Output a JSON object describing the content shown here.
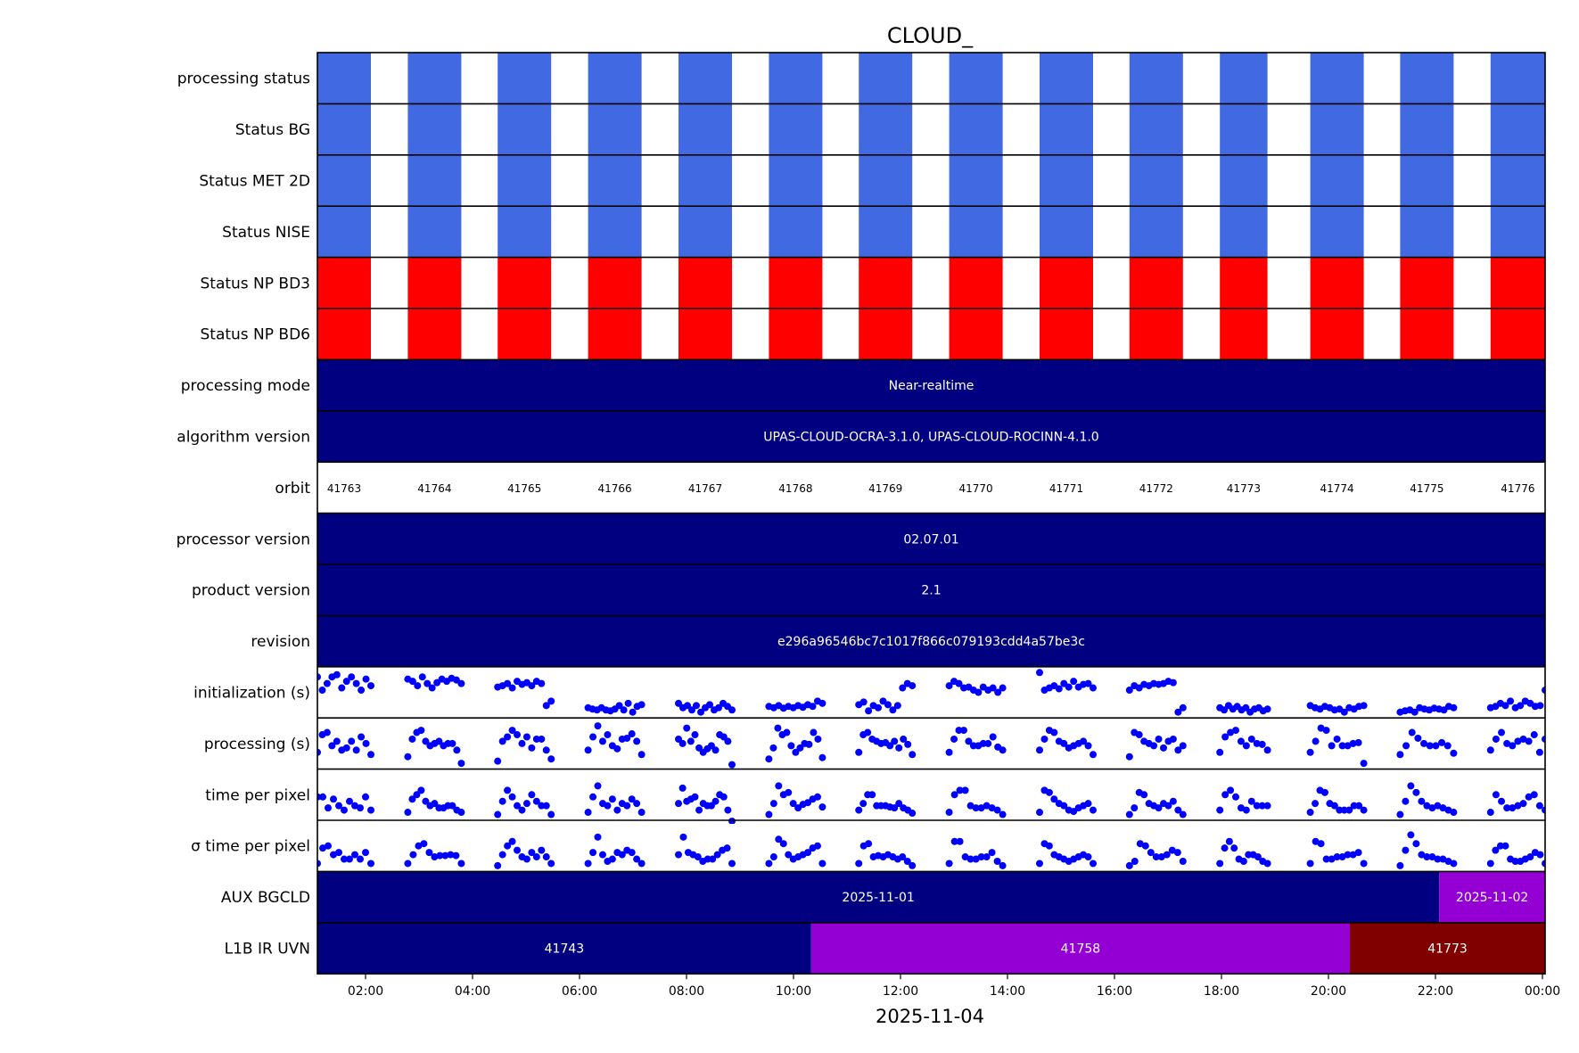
{
  "chart_data": {
    "type": "timeline",
    "title": "CLOUD_",
    "xlabel": "2025-11-04",
    "x_range_hours": [
      1.1,
      24.05
    ],
    "x_ticks": [
      {
        "hour": 2,
        "label": "02:00"
      },
      {
        "hour": 4,
        "label": "04:00"
      },
      {
        "hour": 6,
        "label": "06:00"
      },
      {
        "hour": 8,
        "label": "08:00"
      },
      {
        "hour": 10,
        "label": "10:00"
      },
      {
        "hour": 12,
        "label": "12:00"
      },
      {
        "hour": 14,
        "label": "14:00"
      },
      {
        "hour": 16,
        "label": "16:00"
      },
      {
        "hour": 18,
        "label": "18:00"
      },
      {
        "hour": 20,
        "label": "20:00"
      },
      {
        "hour": 22,
        "label": "22:00"
      },
      {
        "hour": 24,
        "label": "00:00"
      }
    ],
    "colors": {
      "status_ok": "#4169e1",
      "status_fail": "#ff0000",
      "navy": "#000080",
      "violet": "#9400d3",
      "maroon": "#800000",
      "dot": "#0000ff",
      "frame": "#000000"
    },
    "rows": [
      {
        "label": "processing status",
        "kind": "status",
        "color": "#4169e1"
      },
      {
        "label": "Status BG",
        "kind": "status",
        "color": "#4169e1"
      },
      {
        "label": "Status MET 2D",
        "kind": "status",
        "color": "#4169e1"
      },
      {
        "label": "Status NISE",
        "kind": "status",
        "color": "#4169e1"
      },
      {
        "label": "Status NP BD3",
        "kind": "status",
        "color": "#ff0000"
      },
      {
        "label": "Status NP BD6",
        "kind": "status",
        "color": "#ff0000"
      },
      {
        "label": "processing mode",
        "kind": "span",
        "segments": [
          {
            "start": 1.1,
            "end": 24.05,
            "text": "Near-realtime",
            "color": "#000080"
          }
        ]
      },
      {
        "label": "algorithm version",
        "kind": "span",
        "segments": [
          {
            "start": 1.1,
            "end": 24.05,
            "text": "UPAS-CLOUD-OCRA-3.1.0, UPAS-CLOUD-ROCINN-4.1.0",
            "color": "#000080"
          }
        ]
      },
      {
        "label": "orbit",
        "kind": "orbit"
      },
      {
        "label": "processor version",
        "kind": "span",
        "segments": [
          {
            "start": 1.1,
            "end": 24.05,
            "text": "02.07.01",
            "color": "#000080"
          }
        ]
      },
      {
        "label": "product version",
        "kind": "span",
        "segments": [
          {
            "start": 1.1,
            "end": 24.05,
            "text": "2.1",
            "color": "#000080"
          }
        ]
      },
      {
        "label": "revision",
        "kind": "span",
        "segments": [
          {
            "start": 1.1,
            "end": 24.05,
            "text": "e296a96546bc7c1017f866c079193cdd4a57be3c",
            "color": "#000080"
          }
        ]
      },
      {
        "label": "initialization (s)",
        "kind": "scatter",
        "metric": "init"
      },
      {
        "label": "processing (s)",
        "kind": "scatter",
        "metric": "proc"
      },
      {
        "label": "time per pixel",
        "kind": "scatter",
        "metric": "tpp"
      },
      {
        "label": "σ time per pixel",
        "kind": "scatter",
        "metric": "sigma"
      },
      {
        "label": "AUX BGCLD",
        "kind": "span",
        "segments": [
          {
            "start": 1.1,
            "end": 22.07,
            "text": "2025-11-01",
            "color": "#000080"
          },
          {
            "start": 22.07,
            "end": 24.05,
            "text": "2025-11-02",
            "color": "#9400d3"
          }
        ]
      },
      {
        "label": "L1B IR UVN",
        "kind": "span",
        "segments": [
          {
            "start": 1.1,
            "end": 10.33,
            "text": "41743",
            "color": "#000080"
          },
          {
            "start": 10.33,
            "end": 20.4,
            "text": "41758",
            "color": "#9400d3"
          },
          {
            "start": 20.4,
            "end": 24.05,
            "text": "41773",
            "color": "#800000"
          }
        ]
      }
    ],
    "orbits": [
      {
        "orbit": "41763",
        "start": 1.1,
        "end": 2.1
      },
      {
        "orbit": "41764",
        "start": 2.79,
        "end": 3.79
      },
      {
        "orbit": "41765",
        "start": 4.47,
        "end": 5.47
      },
      {
        "orbit": "41766",
        "start": 6.16,
        "end": 7.16
      },
      {
        "orbit": "41767",
        "start": 7.85,
        "end": 8.85
      },
      {
        "orbit": "41768",
        "start": 9.54,
        "end": 10.54
      },
      {
        "orbit": "41769",
        "start": 11.22,
        "end": 12.22
      },
      {
        "orbit": "41770",
        "start": 12.91,
        "end": 13.91
      },
      {
        "orbit": "41771",
        "start": 14.6,
        "end": 15.6
      },
      {
        "orbit": "41772",
        "start": 16.28,
        "end": 17.28
      },
      {
        "orbit": "41773",
        "start": 17.97,
        "end": 18.86
      },
      {
        "orbit": "41774",
        "start": 19.66,
        "end": 20.66
      },
      {
        "orbit": "41775",
        "start": 21.34,
        "end": 22.34
      },
      {
        "orbit": "41776",
        "start": 23.03,
        "end": 24.05
      }
    ],
    "metrics": {
      "init": [
        [
          0.85,
          0.55,
          0.7,
          0.85,
          0.9,
          0.6,
          0.75,
          0.85,
          0.7,
          0.55,
          0.8,
          0.65
        ],
        [
          0.8,
          0.75,
          0.65,
          0.85,
          0.7,
          0.6,
          0.72,
          0.8,
          0.75,
          0.82,
          0.78,
          0.7
        ],
        [
          0.62,
          0.65,
          0.7,
          0.6,
          0.75,
          0.68,
          0.72,
          0.65,
          0.75,
          0.7,
          0.2,
          0.3
        ],
        [
          0.15,
          0.12,
          0.1,
          0.15,
          0.1,
          0.08,
          0.12,
          0.2,
          0.1,
          0.25,
          0.05,
          0.18,
          0.22
        ],
        [
          0.25,
          0.15,
          0.2,
          0.1,
          0.2,
          0.05,
          0.15,
          0.22,
          0.1,
          0.15,
          0.25,
          0.18,
          0.1
        ],
        [
          0.18,
          0.15,
          0.2,
          0.14,
          0.18,
          0.15,
          0.2,
          0.16,
          0.22,
          0.18,
          0.3,
          0.25
        ],
        [
          0.22,
          0.28,
          0.08,
          0.2,
          0.15,
          0.3,
          0.22,
          0.1,
          0.2,
          0.6,
          0.7,
          0.65
        ],
        [
          0.65,
          0.75,
          0.7,
          0.6,
          0.62,
          0.55,
          0.5,
          0.62,
          0.55,
          0.6,
          0.5,
          0.6
        ],
        [
          0.95,
          0.55,
          0.6,
          0.65,
          0.58,
          0.7,
          0.62,
          0.75,
          0.62,
          0.68,
          0.7,
          0.6
        ],
        [
          0.55,
          0.65,
          0.6,
          0.68,
          0.65,
          0.7,
          0.68,
          0.7,
          0.75,
          0.72,
          0.05,
          0.15
        ],
        [
          0.15,
          0.1,
          0.2,
          0.12,
          0.18,
          0.1,
          0.15,
          0.05,
          0.12,
          0.15,
          0.08,
          0.12
        ],
        [
          0.2,
          0.15,
          0.12,
          0.18,
          0.15,
          0.1,
          0.12,
          0.05,
          0.15,
          0.12,
          0.18,
          0.2
        ],
        [
          0.05,
          0.08,
          0.1,
          0.05,
          0.15,
          0.12,
          0.1,
          0.14,
          0.12,
          0.1,
          0.18,
          0.15
        ],
        [
          0.15,
          0.18,
          0.25,
          0.2,
          0.3,
          0.15,
          0.2,
          0.3,
          0.25,
          0.18,
          0.2,
          0.55
        ]
      ],
      "proc": [
        [
          0.3,
          0.7,
          0.75,
          0.45,
          0.55,
          0.35,
          0.4,
          0.55,
          0.35,
          0.65,
          0.5,
          0.25
        ],
        [
          0.2,
          0.6,
          0.75,
          0.8,
          0.55,
          0.45,
          0.5,
          0.55,
          0.45,
          0.5,
          0.5,
          0.35,
          0.05
        ],
        [
          0.1,
          0.55,
          0.65,
          0.8,
          0.7,
          0.5,
          0.65,
          0.4,
          0.6,
          0.6,
          0.35,
          0.15
        ],
        [
          0.35,
          0.65,
          0.9,
          0.55,
          0.7,
          0.45,
          0.38,
          0.6,
          0.62,
          0.72,
          0.55,
          0.25
        ],
        [
          0.6,
          0.5,
          0.85,
          0.55,
          0.7,
          0.4,
          0.3,
          0.38,
          0.45,
          0.35,
          0.7,
          0.65,
          0.55,
          0.02
        ],
        [
          0.15,
          0.4,
          0.85,
          0.7,
          0.75,
          0.45,
          0.3,
          0.4,
          0.5,
          0.48,
          0.75,
          0.6,
          0.18
        ],
        [
          0.3,
          0.7,
          0.75,
          0.6,
          0.55,
          0.5,
          0.52,
          0.45,
          0.55,
          0.4,
          0.6,
          0.48,
          0.25
        ],
        [
          0.3,
          0.6,
          0.8,
          0.8,
          0.55,
          0.45,
          0.45,
          0.5,
          0.5,
          0.65,
          0.42,
          0.35
        ],
        [
          0.35,
          0.6,
          0.8,
          0.75,
          0.55,
          0.5,
          0.4,
          0.45,
          0.5,
          0.55,
          0.45,
          0.25
        ],
        [
          0.2,
          0.75,
          0.7,
          0.55,
          0.5,
          0.45,
          0.6,
          0.4,
          0.55,
          0.6,
          0.35,
          0.45
        ],
        [
          0.3,
          0.65,
          0.75,
          0.8,
          0.55,
          0.45,
          0.6,
          0.5,
          0.48,
          0.35
        ],
        [
          0.3,
          0.55,
          0.85,
          0.8,
          0.45,
          0.6,
          0.45,
          0.45,
          0.5,
          0.52,
          0.05
        ],
        [
          0.25,
          0.45,
          0.75,
          0.62,
          0.5,
          0.45,
          0.45,
          0.52,
          0.45,
          0.28
        ],
        [
          0.35,
          0.6,
          0.75,
          0.5,
          0.45,
          0.55,
          0.6,
          0.55,
          0.7,
          0.3,
          0.6
        ]
      ],
      "tpp": [
        [
          0.45,
          0.45,
          0.2,
          0.4,
          0.25,
          0.15,
          0.35,
          0.25,
          0.2,
          0.45,
          0.15
        ],
        [
          0.1,
          0.4,
          0.5,
          0.6,
          0.35,
          0.25,
          0.3,
          0.2,
          0.2,
          0.25,
          0.25,
          0.15,
          0.1
        ],
        [
          0.05,
          0.35,
          0.6,
          0.45,
          0.25,
          0.15,
          0.3,
          0.5,
          0.35,
          0.25,
          0.25,
          0.05
        ],
        [
          0.1,
          0.45,
          0.7,
          0.3,
          0.25,
          0.4,
          0.15,
          0.3,
          0.25,
          0.4,
          0.3,
          0.1
        ],
        [
          0.3,
          0.65,
          0.35,
          0.4,
          0.45,
          0.15,
          0.3,
          0.25,
          0.25,
          0.35,
          0.5,
          0.45,
          0.15,
          -0.1
        ],
        [
          0.05,
          0.3,
          0.7,
          0.5,
          0.55,
          0.3,
          0.2,
          0.28,
          0.32,
          0.4,
          0.45,
          0.22
        ],
        [
          0.15,
          0.3,
          0.5,
          0.5,
          0.25,
          0.25,
          0.25,
          0.22,
          0.2,
          0.3,
          0.2,
          0.15,
          0.08
        ],
        [
          0.1,
          0.5,
          0.6,
          0.6,
          0.25,
          0.2,
          0.2,
          0.25,
          0.2,
          0.15,
          0.05
        ],
        [
          0.1,
          0.6,
          0.55,
          0.4,
          0.3,
          0.25,
          0.15,
          0.12,
          0.2,
          0.25,
          0.3,
          0.15
        ],
        [
          0.05,
          0.2,
          0.55,
          0.5,
          0.3,
          0.25,
          0.2,
          0.3,
          0.25,
          0.35,
          0.15,
          0.05
        ],
        [
          0.15,
          0.5,
          0.6,
          0.45,
          0.2,
          0.15,
          0.35,
          0.25,
          0.25,
          0.25
        ],
        [
          0.1,
          0.3,
          0.6,
          0.55,
          0.3,
          0.25,
          0.15,
          0.15,
          0.15,
          0.25,
          0.25,
          0.15
        ],
        [
          0.05,
          0.35,
          0.7,
          0.55,
          0.35,
          0.25,
          0.2,
          0.25,
          0.2,
          0.15,
          0.1
        ],
        [
          0.1,
          0.5,
          0.35,
          0.2,
          0.2,
          0.25,
          0.3,
          0.45,
          0.5,
          0.25,
          0.15
        ]
      ],
      "sigma": [
        [
          0.1,
          0.45,
          0.5,
          0.3,
          0.35,
          0.2,
          0.2,
          0.3,
          0.2,
          0.35,
          0.1
        ],
        [
          0.1,
          0.3,
          0.5,
          0.55,
          0.35,
          0.25,
          0.28,
          0.28,
          0.3,
          0.28,
          0.1
        ],
        [
          0.05,
          0.3,
          0.5,
          0.6,
          0.4,
          0.25,
          0.2,
          0.35,
          0.25,
          0.4,
          0.25,
          0.1
        ],
        [
          0.1,
          0.35,
          0.7,
          0.3,
          0.15,
          0.2,
          0.35,
          0.3,
          0.4,
          0.35,
          0.2,
          0.1
        ],
        [
          0.3,
          0.7,
          0.35,
          0.3,
          0.25,
          0.15,
          0.2,
          0.2,
          0.3,
          0.4,
          0.45,
          0.1
        ],
        [
          0.1,
          0.25,
          0.65,
          0.55,
          0.3,
          0.2,
          0.25,
          0.3,
          0.35,
          0.45,
          0.5,
          0.1
        ],
        [
          0.1,
          0.5,
          0.55,
          0.25,
          0.28,
          0.25,
          0.3,
          0.25,
          0.2,
          0.25,
          0.15,
          0.05
        ],
        [
          0.1,
          0.6,
          0.6,
          0.25,
          0.2,
          0.2,
          0.25,
          0.25,
          0.35,
          0.15,
          0.05
        ],
        [
          0.1,
          0.55,
          0.5,
          0.3,
          0.25,
          0.2,
          0.15,
          0.2,
          0.25,
          0.3,
          0.25,
          0.1
        ],
        [
          0.05,
          0.15,
          0.55,
          0.5,
          0.35,
          0.25,
          0.25,
          0.3,
          0.4,
          0.35,
          0.15
        ],
        [
          0.1,
          0.45,
          0.6,
          0.45,
          0.2,
          0.15,
          0.3,
          0.3,
          0.25,
          0.15,
          0.1
        ],
        [
          0.1,
          0.6,
          0.55,
          0.2,
          0.2,
          0.25,
          0.25,
          0.3,
          0.3,
          0.35,
          0.1
        ],
        [
          0.05,
          0.4,
          0.75,
          0.55,
          0.3,
          0.25,
          0.25,
          0.2,
          0.2,
          0.15,
          0.1
        ],
        [
          0.1,
          0.4,
          0.5,
          0.5,
          0.2,
          0.15,
          0.15,
          0.2,
          0.25,
          0.35,
          0.3,
          0.1
        ]
      ]
    }
  }
}
